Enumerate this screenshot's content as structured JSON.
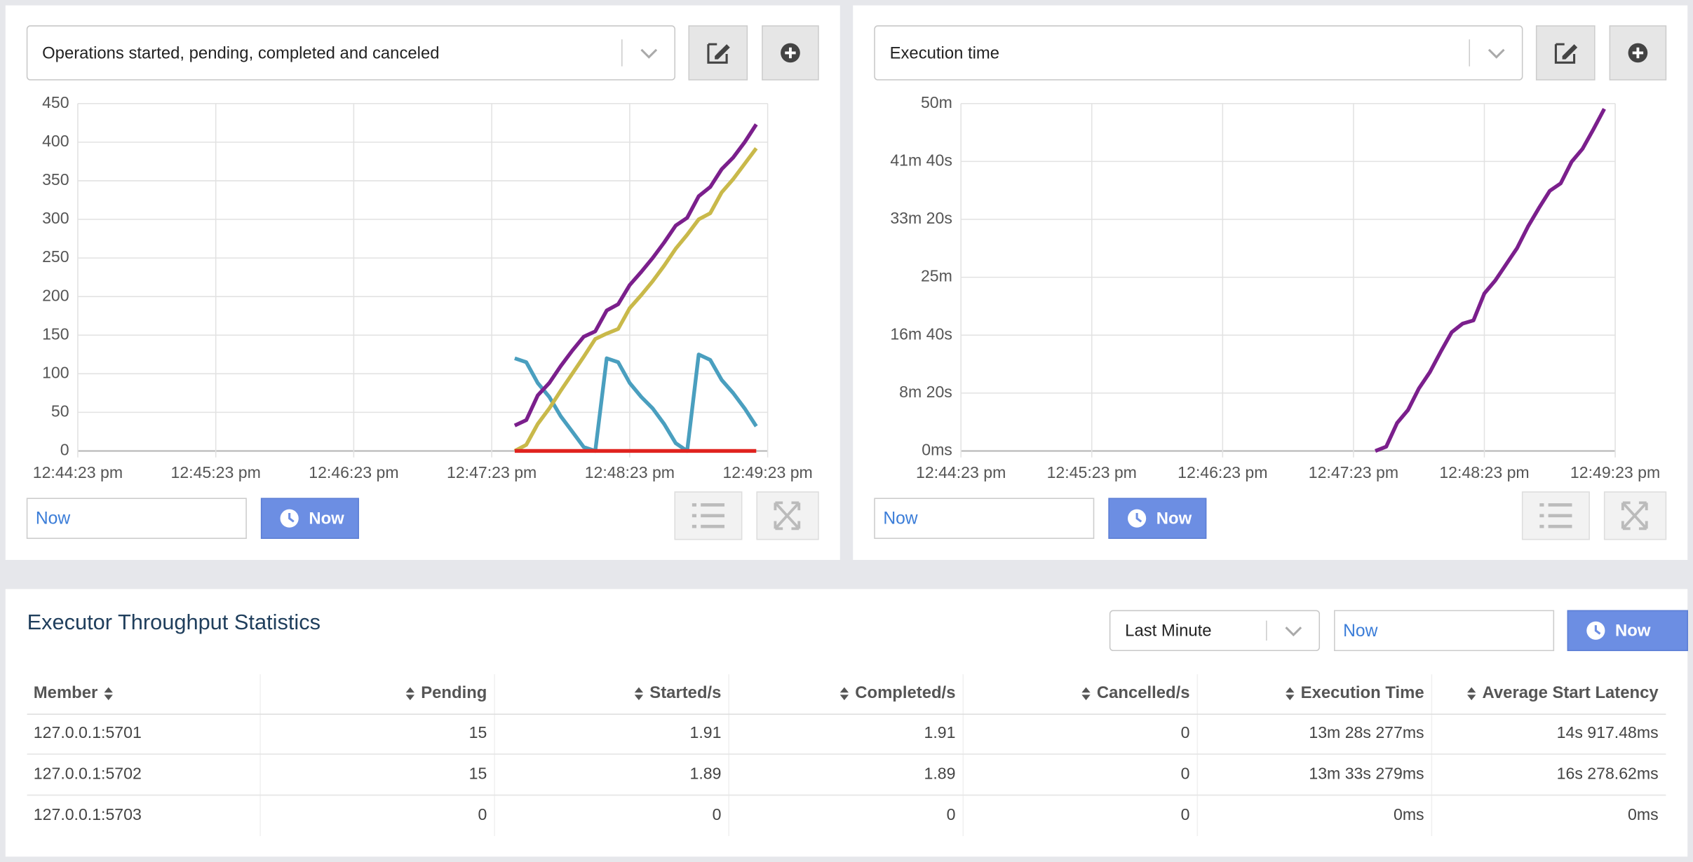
{
  "panels": [
    {
      "metric_select": "Operations started, pending, completed and canceled",
      "chart_data": {
        "type": "line",
        "x": [
          "12:47:33 pm",
          "12:47:38 pm",
          "12:47:43 pm",
          "12:47:48 pm",
          "12:47:53 pm",
          "12:47:58 pm",
          "12:48:03 pm",
          "12:48:08 pm",
          "12:48:13 pm",
          "12:48:18 pm",
          "12:48:23 pm",
          "12:48:28 pm",
          "12:48:33 pm",
          "12:48:38 pm",
          "12:48:43 pm",
          "12:48:48 pm",
          "12:48:53 pm",
          "12:48:58 pm",
          "12:49:03 pm",
          "12:49:08 pm",
          "12:49:13 pm",
          "12:49:18 pm"
        ],
        "series": [
          {
            "color": "#4a9fbf",
            "values": [
              120,
              115,
              88,
              70,
              45,
              25,
              5,
              0,
              120,
              115,
              88,
              70,
              55,
              35,
              10,
              0,
              125,
              118,
              92,
              75,
              55,
              32
            ]
          },
          {
            "color": "#c9b94a",
            "values": [
              0,
              8,
              35,
              55,
              78,
              100,
              122,
              145,
              152,
              158,
              185,
              202,
              220,
              240,
              262,
              280,
              300,
              308,
              335,
              352,
              372,
              392
            ]
          },
          {
            "color": "#7b1f8c",
            "values": [
              33,
              40,
              72,
              88,
              110,
              130,
              148,
              155,
              182,
              190,
              215,
              232,
              250,
              270,
              292,
              302,
              330,
              342,
              365,
              380,
              400,
              423
            ]
          },
          {
            "color": "#e0231f",
            "values": [
              0,
              0,
              0,
              0,
              0,
              0,
              0,
              0,
              0,
              0,
              0,
              0,
              0,
              0,
              0,
              0,
              0,
              0,
              0,
              0,
              0,
              0
            ]
          }
        ],
        "xlim": [
          "12:44:23 pm",
          "12:49:23 pm"
        ],
        "xticks": [
          "12:44:23 pm",
          "12:45:23 pm",
          "12:46:23 pm",
          "12:47:23 pm",
          "12:48:23 pm",
          "12:49:23 pm"
        ],
        "ylim": [
          0,
          450
        ],
        "yticks": [
          0,
          50,
          100,
          150,
          200,
          250,
          300,
          350,
          400,
          450
        ],
        "grid": true
      },
      "time_input": "Now",
      "now_button": "Now"
    },
    {
      "metric_select": "Execution time",
      "chart_data": {
        "type": "line",
        "x": [
          "12:47:33 pm",
          "12:47:38 pm",
          "12:47:43 pm",
          "12:47:48 pm",
          "12:47:53 pm",
          "12:47:58 pm",
          "12:48:03 pm",
          "12:48:08 pm",
          "12:48:13 pm",
          "12:48:18 pm",
          "12:48:23 pm",
          "12:48:28 pm",
          "12:48:33 pm",
          "12:48:38 pm",
          "12:48:43 pm",
          "12:48:48 pm",
          "12:48:53 pm",
          "12:48:58 pm",
          "12:49:03 pm",
          "12:49:08 pm",
          "12:49:13 pm",
          "12:49:18 pm"
        ],
        "series": [
          {
            "color": "#7b1f8c",
            "values": [
              0,
              37,
              242,
              354,
              540,
              680,
              857,
              1025,
              1099,
              1127,
              1360,
              1472,
              1612,
              1752,
              1938,
              2097,
              2246,
              2311,
              2497,
              2609,
              2777,
              2954
            ]
          }
        ],
        "xlim": [
          "12:44:23 pm",
          "12:49:23 pm"
        ],
        "xticks": [
          "12:44:23 pm",
          "12:45:23 pm",
          "12:46:23 pm",
          "12:47:23 pm",
          "12:48:23 pm",
          "12:49:23 pm"
        ],
        "ylim": [
          0,
          3000
        ],
        "yticks": [
          {
            "value": 0,
            "label": "0ms"
          },
          {
            "value": 500,
            "label": "8m 20s"
          },
          {
            "value": 1000,
            "label": "16m 40s"
          },
          {
            "value": 1500,
            "label": "25m"
          },
          {
            "value": 2000,
            "label": "33m 20s"
          },
          {
            "value": 2500,
            "label": "41m 40s"
          },
          {
            "value": 3000,
            "label": "50m"
          }
        ],
        "grid": true
      },
      "time_input": "Now",
      "now_button": "Now"
    }
  ],
  "table_section": {
    "title": "Executor Throughput Statistics",
    "range_select": "Last Minute",
    "time_input": "Now",
    "now_button": "Now",
    "columns": [
      "Member",
      "Pending",
      "Started/s",
      "Completed/s",
      "Cancelled/s",
      "Execution Time",
      "Average Start Latency"
    ],
    "rows": [
      [
        "127.0.0.1:5701",
        "15",
        "1.91",
        "1.91",
        "0",
        "13m 28s 277ms",
        "14s 917.48ms"
      ],
      [
        "127.0.0.1:5702",
        "15",
        "1.89",
        "1.89",
        "0",
        "13m 33s 279ms",
        "16s 278.62ms"
      ],
      [
        "127.0.0.1:5703",
        "0",
        "0",
        "0",
        "0",
        "0ms",
        "0ms"
      ]
    ]
  }
}
